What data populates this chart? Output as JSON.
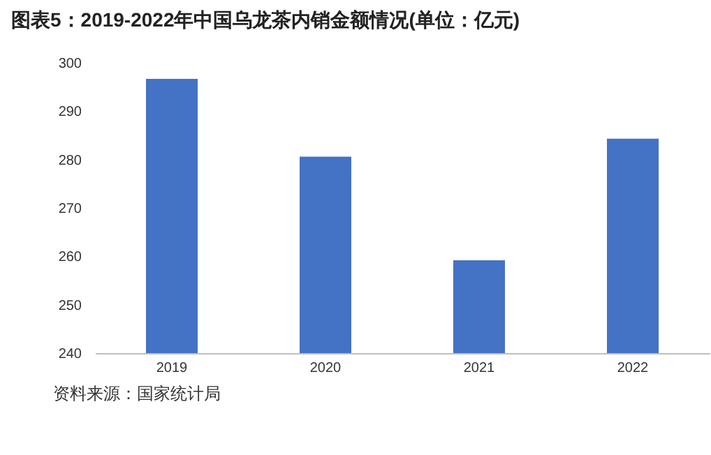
{
  "chart_data": {
    "type": "bar",
    "title": "图表5：2019-2022年中国乌龙茶内销金额情况(单位：亿元)",
    "categories": [
      "2019",
      "2020",
      "2021",
      "2022"
    ],
    "values": [
      296.7,
      280.6,
      259.2,
      284.3
    ],
    "color": "#4472c4",
    "ylim": [
      240,
      300
    ],
    "yticks": [
      240,
      250,
      260,
      270,
      280,
      290,
      300
    ],
    "grid": false,
    "annotations": [
      "资料来源：国家统计局"
    ]
  }
}
